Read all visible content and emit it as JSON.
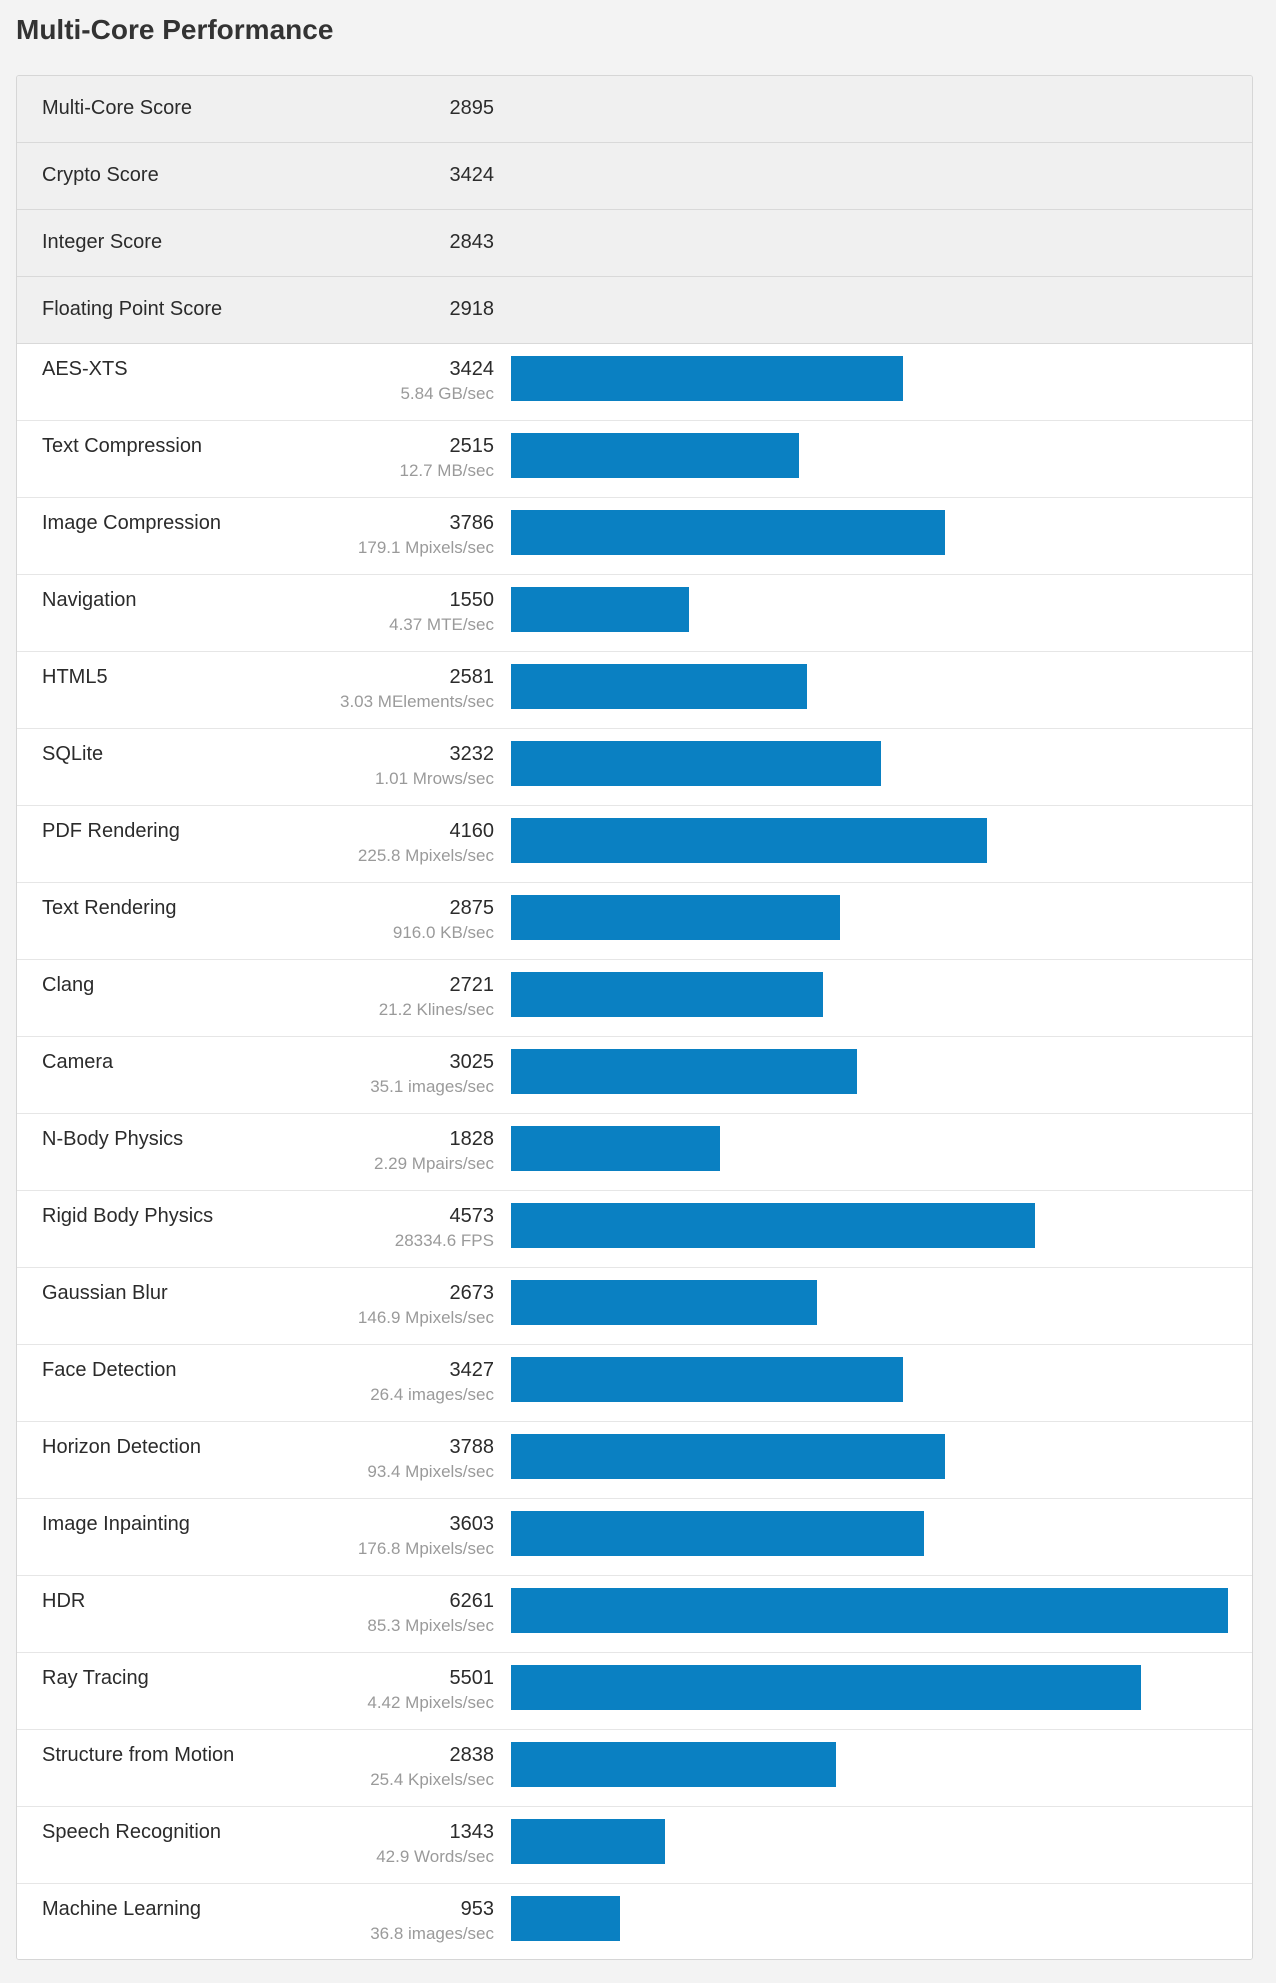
{
  "title": "Multi-Core Performance",
  "bar_color": "#0a80c2",
  "bar_max": 6261,
  "scores": [
    {
      "label": "Multi-Core Score",
      "value": "2895"
    },
    {
      "label": "Crypto Score",
      "value": "3424"
    },
    {
      "label": "Integer Score",
      "value": "2843"
    },
    {
      "label": "Floating Point Score",
      "value": "2918"
    }
  ],
  "benchmarks": [
    {
      "name": "AES-XTS",
      "score": 3424,
      "unit": "5.84 GB/sec"
    },
    {
      "name": "Text Compression",
      "score": 2515,
      "unit": "12.7 MB/sec"
    },
    {
      "name": "Image Compression",
      "score": 3786,
      "unit": "179.1 Mpixels/sec"
    },
    {
      "name": "Navigation",
      "score": 1550,
      "unit": "4.37 MTE/sec"
    },
    {
      "name": "HTML5",
      "score": 2581,
      "unit": "3.03 MElements/sec"
    },
    {
      "name": "SQLite",
      "score": 3232,
      "unit": "1.01 Mrows/sec"
    },
    {
      "name": "PDF Rendering",
      "score": 4160,
      "unit": "225.8 Mpixels/sec"
    },
    {
      "name": "Text Rendering",
      "score": 2875,
      "unit": "916.0 KB/sec"
    },
    {
      "name": "Clang",
      "score": 2721,
      "unit": "21.2 Klines/sec"
    },
    {
      "name": "Camera",
      "score": 3025,
      "unit": "35.1 images/sec"
    },
    {
      "name": "N-Body Physics",
      "score": 1828,
      "unit": "2.29 Mpairs/sec"
    },
    {
      "name": "Rigid Body Physics",
      "score": 4573,
      "unit": "28334.6 FPS"
    },
    {
      "name": "Gaussian Blur",
      "score": 2673,
      "unit": "146.9 Mpixels/sec"
    },
    {
      "name": "Face Detection",
      "score": 3427,
      "unit": "26.4 images/sec"
    },
    {
      "name": "Horizon Detection",
      "score": 3788,
      "unit": "93.4 Mpixels/sec"
    },
    {
      "name": "Image Inpainting",
      "score": 3603,
      "unit": "176.8 Mpixels/sec"
    },
    {
      "name": "HDR",
      "score": 6261,
      "unit": "85.3 Mpixels/sec"
    },
    {
      "name": "Ray Tracing",
      "score": 5501,
      "unit": "4.42 Mpixels/sec"
    },
    {
      "name": "Structure from Motion",
      "score": 2838,
      "unit": "25.4 Kpixels/sec"
    },
    {
      "name": "Speech Recognition",
      "score": 1343,
      "unit": "42.9 Words/sec"
    },
    {
      "name": "Machine Learning",
      "score": 953,
      "unit": "36.8 images/sec"
    }
  ]
}
